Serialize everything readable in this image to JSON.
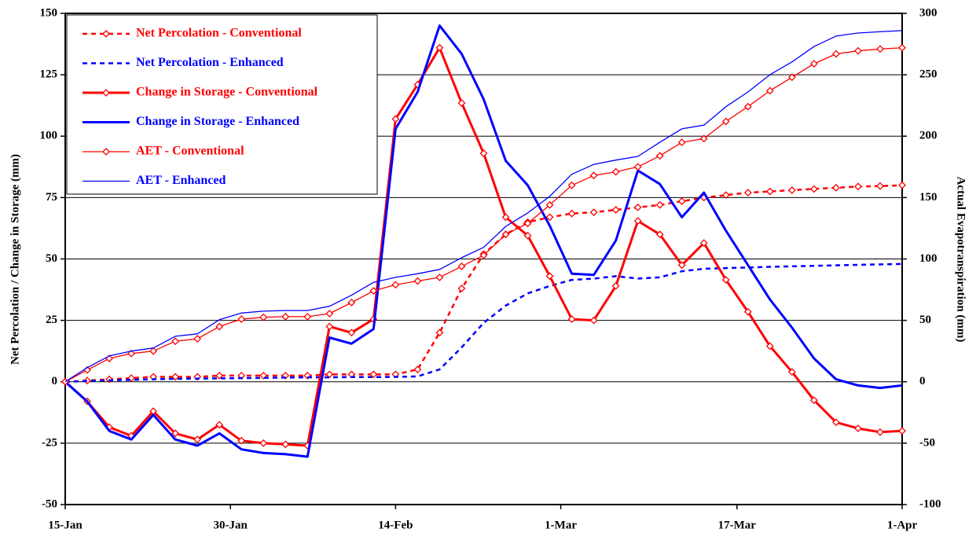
{
  "chart_data": {
    "type": "line",
    "y_label": "Net Percolation / Change in Storage (mm)",
    "y2_label": "Actual Evapotranspiration (mm)",
    "x": [
      0,
      2,
      4,
      6,
      8,
      10,
      12,
      14,
      16,
      18,
      20,
      22,
      24,
      26,
      28,
      30,
      32,
      34,
      36,
      38,
      40,
      42,
      44,
      46,
      48,
      50,
      52,
      54,
      56,
      58,
      60,
      62,
      64,
      66,
      68,
      70,
      72,
      74,
      76
    ],
    "xlim": [
      0,
      76
    ],
    "xticks": [
      {
        "value": 0,
        "label": "15-Jan"
      },
      {
        "value": 15,
        "label": "30-Jan"
      },
      {
        "value": 30,
        "label": "14-Feb"
      },
      {
        "value": 45,
        "label": "1-Mar"
      },
      {
        "value": 61,
        "label": "17-Mar"
      },
      {
        "value": 76,
        "label": "1-Apr"
      }
    ],
    "ylim": [
      -50,
      150
    ],
    "yticks": [
      -50,
      -25,
      0,
      25,
      50,
      75,
      100,
      125,
      150
    ],
    "y2lim": [
      -100,
      300
    ],
    "y2ticks": [
      -100,
      -50,
      0,
      50,
      100,
      150,
      200,
      250,
      300
    ],
    "grid": true,
    "legend": "upper left",
    "series": [
      {
        "name": "Net Percolation - Conventional",
        "color": "#ff0000",
        "dash": true,
        "width": 2.5,
        "marker": "diamond",
        "values": [
          0,
          0.5,
          1,
          1.5,
          2,
          2,
          2,
          2.5,
          2.5,
          2.5,
          2.5,
          2.5,
          3,
          3,
          3,
          3,
          5,
          20,
          38,
          52,
          60,
          65,
          67,
          68.5,
          69,
          70,
          71,
          72,
          73.5,
          75,
          76,
          77,
          77.5,
          78,
          78.5,
          79,
          79.5,
          79.7,
          80
        ]
      },
      {
        "name": "Net Percolation - Enhanced",
        "color": "#0000ff",
        "dash": true,
        "width": 2.5,
        "marker": "none",
        "values": [
          0,
          0.3,
          0.6,
          0.8,
          1,
          1.2,
          1.3,
          1.4,
          1.5,
          1.6,
          1.7,
          1.8,
          1.8,
          1.9,
          1.9,
          2,
          2.2,
          5,
          14,
          24,
          31,
          36,
          39,
          41.5,
          42,
          43,
          42,
          42.5,
          45,
          46,
          46.3,
          46.5,
          46.8,
          47,
          47.2,
          47.4,
          47.6,
          47.8,
          48
        ]
      },
      {
        "name": "Change in Storage - Conventional",
        "color": "#ff0000",
        "dash": false,
        "width": 3,
        "marker": "diamond",
        "values": [
          0,
          -8,
          -18.5,
          -22,
          -12,
          -21,
          -23.5,
          -17.5,
          -24,
          -25,
          -25.5,
          -26,
          22.5,
          20,
          25.5,
          107,
          121,
          136,
          113.5,
          93,
          67,
          59.5,
          43,
          25.5,
          25,
          39,
          65.5,
          60,
          47.5,
          56.5,
          41.5,
          28.5,
          14.5,
          4,
          -7.5,
          -16.5,
          -19,
          -20.5,
          -20
        ]
      },
      {
        "name": "Change in Storage - Enhanced",
        "color": "#0000ff",
        "dash": false,
        "width": 3,
        "marker": "none",
        "values": [
          0,
          -8,
          -20,
          -23.5,
          -13.5,
          -23.5,
          -26,
          -21,
          -27.5,
          -29,
          -29.5,
          -30.5,
          18,
          15.5,
          21.5,
          103,
          118,
          145,
          133.5,
          115,
          90,
          80,
          63.5,
          44,
          43.5,
          57.5,
          86,
          80.5,
          67,
          77,
          61.5,
          47.5,
          33.5,
          22,
          9.5,
          1,
          -1.5,
          -2.5,
          -1.5
        ]
      },
      {
        "name": "AET - Conventional",
        "color": "#ff0000",
        "dash": false,
        "width": 1.3,
        "marker": "diamond",
        "axis": "y2",
        "values": [
          0,
          9.6,
          19,
          23,
          25,
          33,
          35,
          45,
          51,
          52.5,
          53,
          53,
          55.5,
          64.5,
          74,
          79,
          82,
          85,
          94,
          103,
          120,
          129,
          144,
          160,
          168,
          171,
          175,
          184,
          195,
          198,
          212,
          224,
          237,
          248,
          259,
          267,
          269.5,
          271,
          272
        ]
      },
      {
        "name": "AET - Enhanced",
        "color": "#0000ff",
        "dash": false,
        "width": 1.3,
        "marker": "none",
        "axis": "y2",
        "values": [
          0,
          11.5,
          21,
          25,
          27.5,
          37,
          39,
          50.5,
          56,
          57.5,
          58,
          58,
          61.5,
          70.5,
          81,
          85,
          88,
          91.5,
          101,
          109.5,
          126.5,
          137.5,
          151,
          169,
          177,
          180.5,
          183.5,
          195,
          206,
          209,
          224,
          236,
          250,
          260.5,
          273,
          281.5,
          284,
          285,
          286
        ]
      }
    ]
  }
}
